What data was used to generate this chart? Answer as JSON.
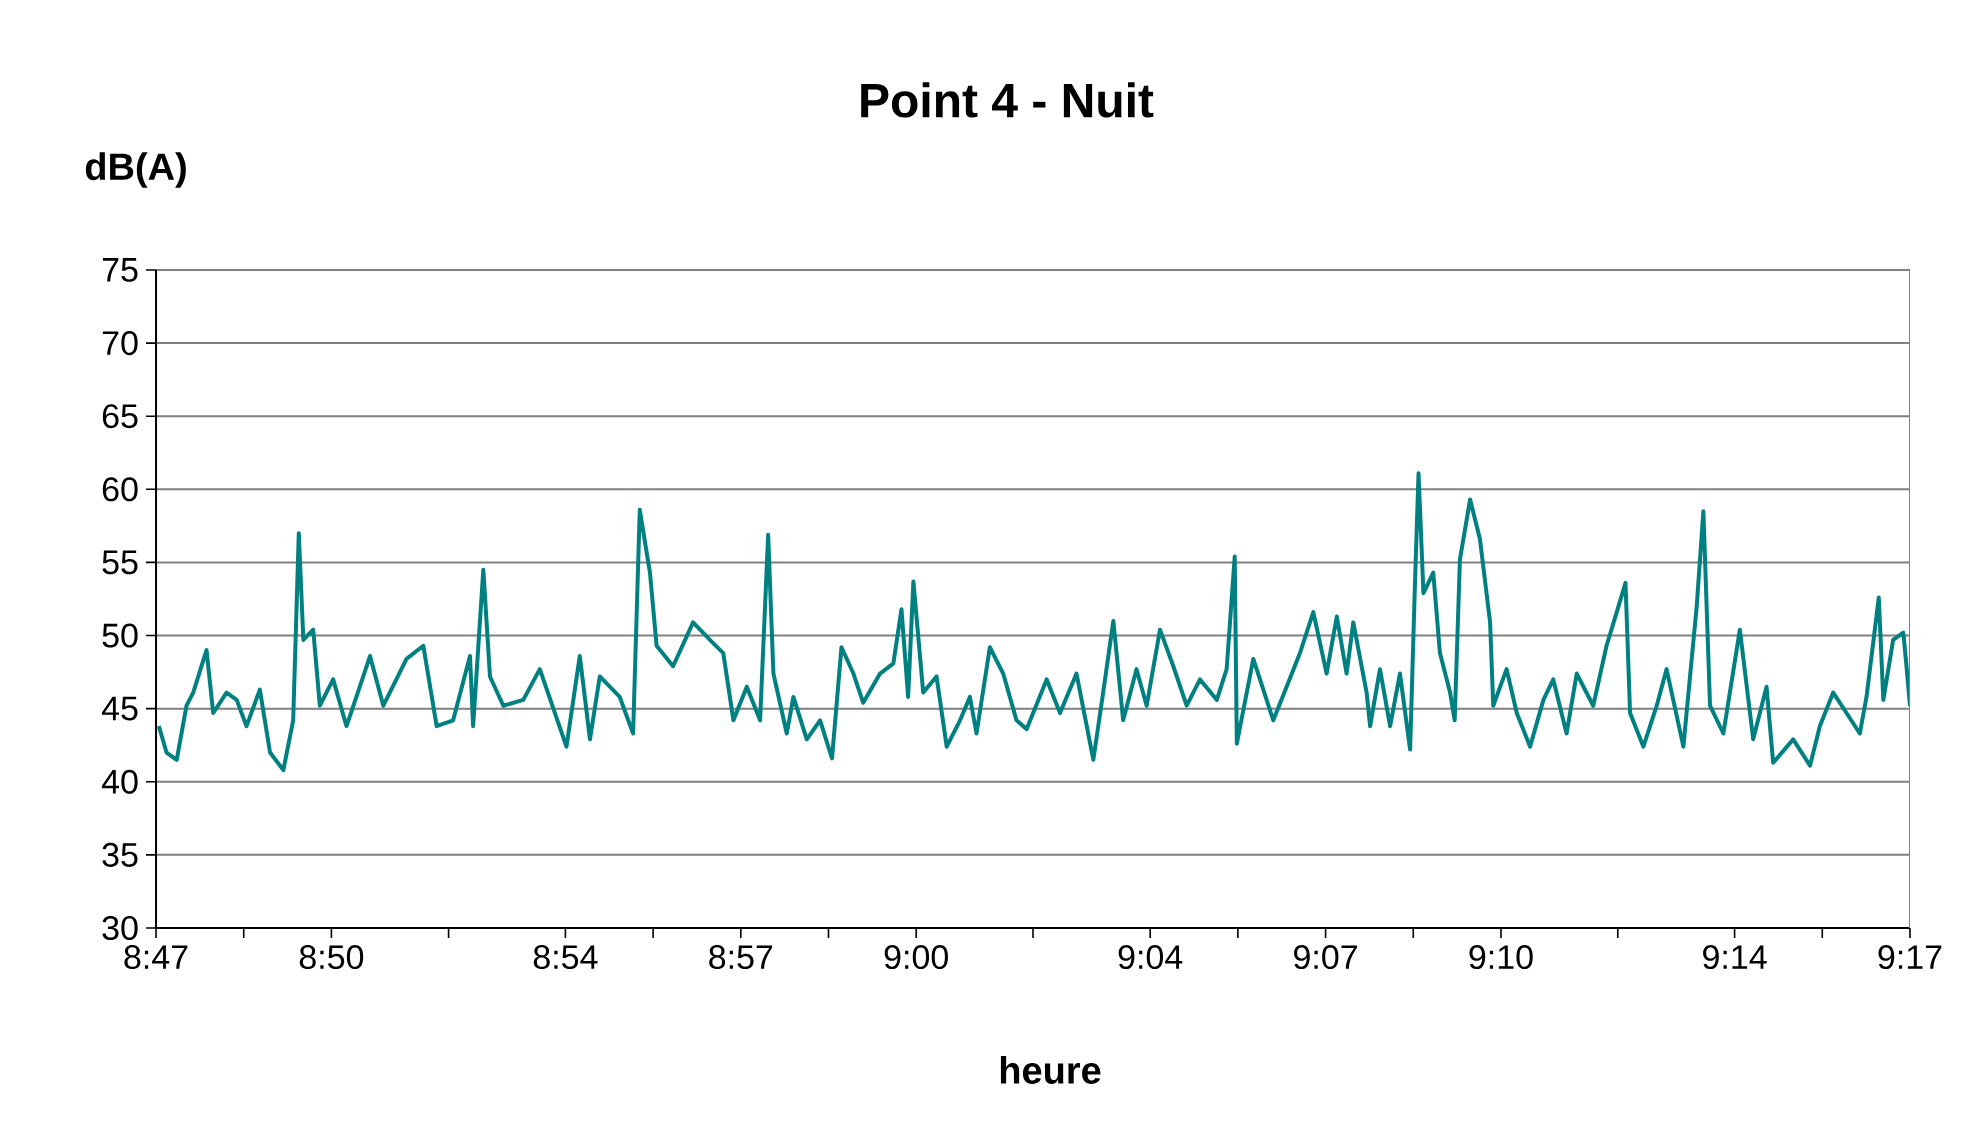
{
  "chart_data": {
    "type": "line",
    "title": "Point 4 - Nuit",
    "xlabel": "heure",
    "ylabel": "dB(A)",
    "xlim": [
      8.7833,
      9.2833
    ],
    "ylim": [
      30,
      75
    ],
    "yticks": [
      30,
      35,
      40,
      45,
      50,
      55,
      60,
      65,
      70,
      75
    ],
    "xticks": [
      {
        "value": 8.7833,
        "label": "8:47"
      },
      {
        "value": 8.8083,
        "label": null
      },
      {
        "value": 8.8333,
        "label": "8:50"
      },
      {
        "value": 8.8667,
        "label": null
      },
      {
        "value": 8.9,
        "label": "8:54"
      },
      {
        "value": 8.925,
        "label": null
      },
      {
        "value": 8.95,
        "label": "8:57"
      },
      {
        "value": 8.975,
        "label": null
      },
      {
        "value": 9.0,
        "label": "9:00"
      },
      {
        "value": 9.0333,
        "label": null
      },
      {
        "value": 9.0667,
        "label": "9:04"
      },
      {
        "value": 9.0917,
        "label": null
      },
      {
        "value": 9.1167,
        "label": "9:07"
      },
      {
        "value": 9.1417,
        "label": null
      },
      {
        "value": 9.1667,
        "label": "9:10"
      },
      {
        "value": 9.2,
        "label": null
      },
      {
        "value": 9.2333,
        "label": "9:14"
      },
      {
        "value": 9.2583,
        "label": null
      },
      {
        "value": 9.2833,
        "label": "9:17"
      }
    ],
    "grid": "y",
    "line_style": "solid",
    "series": [
      {
        "color": "#008080",
        "x": [
          8.7841,
          8.7863,
          8.7892,
          8.792,
          8.7939,
          8.7977,
          8.7996,
          8.8034,
          8.8063,
          8.8091,
          8.8129,
          8.8158,
          8.8196,
          8.8224,
          8.824,
          8.8253,
          8.8281,
          8.83,
          8.8338,
          8.8376,
          8.8414,
          8.8443,
          8.8481,
          8.8547,
          8.8595,
          8.8633,
          8.868,
          8.8728,
          8.8737,
          8.8766,
          8.8785,
          8.8823,
          8.888,
          8.8927,
          8.9003,
          8.9041,
          8.907,
          8.9098,
          8.9155,
          8.9193,
          8.9212,
          8.9241,
          8.926,
          8.9307,
          8.9364,
          8.9412,
          8.945,
          8.9479,
          8.9517,
          8.9555,
          8.9578,
          8.9593,
          8.9631,
          8.965,
          8.9688,
          8.9726,
          8.976,
          8.9787,
          8.9821,
          8.9849,
          8.9897,
          8.9935,
          8.9958,
          8.9977,
          8.9992,
          9.002,
          9.0058,
          9.0087,
          9.0125,
          9.0153,
          9.0172,
          9.021,
          9.0248,
          9.0286,
          9.0315,
          9.0372,
          9.041,
          9.0457,
          9.0505,
          9.0533,
          9.0562,
          9.059,
          9.0628,
          9.0657,
          9.0695,
          9.0733,
          9.0771,
          9.0809,
          9.0857,
          9.0885,
          9.0908,
          9.0914,
          9.0961,
          9.1018,
          9.1056,
          9.1094,
          9.1132,
          9.117,
          9.1199,
          9.1227,
          9.1246,
          9.1284,
          9.1294,
          9.1322,
          9.1351,
          9.1379,
          9.1408,
          9.1421,
          9.1432,
          9.1446,
          9.1474,
          9.1493,
          9.1522,
          9.1535,
          9.155,
          9.1579,
          9.1607,
          9.1636,
          9.1645,
          9.1683,
          9.1712,
          9.175,
          9.1788,
          9.1816,
          9.1854,
          9.1883,
          9.193,
          9.1968,
          9.1997,
          9.2022,
          9.2035,
          9.2073,
          9.2111,
          9.2139,
          9.2187,
          9.2225,
          9.2244,
          9.2263,
          9.2301,
          9.2348,
          9.2386,
          9.2424,
          9.2443,
          9.25,
          9.2548,
          9.2576,
          9.2614,
          9.2652,
          9.269,
          9.2709,
          9.2744,
          9.2757,
          9.2785,
          9.2814,
          9.2823,
          9.2833
        ],
        "values": [
          43.8,
          42.0,
          41.5,
          45.2,
          46.1,
          49.0,
          44.7,
          46.1,
          45.6,
          43.8,
          46.3,
          42.0,
          40.8,
          44.2,
          57.0,
          49.7,
          50.4,
          45.2,
          47.0,
          43.8,
          46.5,
          48.6,
          45.2,
          48.4,
          49.3,
          43.8,
          44.2,
          48.6,
          43.8,
          54.5,
          47.2,
          45.2,
          45.6,
          47.7,
          42.4,
          48.6,
          42.9,
          47.2,
          45.8,
          43.3,
          58.6,
          54.3,
          49.3,
          47.9,
          50.9,
          49.7,
          48.8,
          44.2,
          46.5,
          44.2,
          56.9,
          47.4,
          43.3,
          45.8,
          42.9,
          44.2,
          41.6,
          49.2,
          47.4,
          45.4,
          47.4,
          48.1,
          51.8,
          45.8,
          53.7,
          46.1,
          47.2,
          42.4,
          44.2,
          45.8,
          43.3,
          49.2,
          47.4,
          44.2,
          43.6,
          47.0,
          44.7,
          47.4,
          41.5,
          46.1,
          51.0,
          44.2,
          47.7,
          45.2,
          50.4,
          47.9,
          45.2,
          47.0,
          45.6,
          47.7,
          55.4,
          42.6,
          48.4,
          44.2,
          46.5,
          48.8,
          51.6,
          47.4,
          51.3,
          47.4,
          50.9,
          46.1,
          43.8,
          47.7,
          43.8,
          47.4,
          42.2,
          52.9,
          61.1,
          52.9,
          54.3,
          48.8,
          46.1,
          44.2,
          55.2,
          59.3,
          56.6,
          50.9,
          45.2,
          47.7,
          44.7,
          42.4,
          45.6,
          47.0,
          43.3,
          47.4,
          45.2,
          49.3,
          51.6,
          53.6,
          44.7,
          42.4,
          45.2,
          47.7,
          42.4,
          52.0,
          58.5,
          45.2,
          43.3,
          50.4,
          42.9,
          46.5,
          41.3,
          42.9,
          41.1,
          43.8,
          46.1,
          44.7,
          43.3,
          45.8,
          52.6,
          45.6,
          49.7,
          50.2,
          47.9,
          45.2
        ]
      }
    ]
  }
}
